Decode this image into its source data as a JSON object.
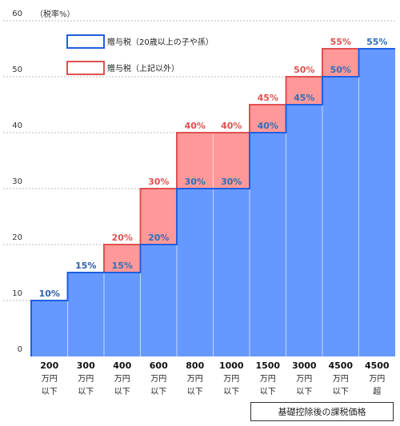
{
  "chart_data": {
    "type": "bar",
    "ylabel": "（税率%）",
    "xlabel": "基礎控除後の課税価格",
    "ylim": [
      0,
      60
    ],
    "yticks": [
      0,
      10,
      20,
      30,
      40,
      50,
      60
    ],
    "ytick_labels": [
      "0",
      "10",
      "20",
      "30",
      "40",
      "50",
      "60"
    ],
    "categories": [
      [
        "200",
        "万円",
        "以下"
      ],
      [
        "300",
        "万円",
        "以下"
      ],
      [
        "400",
        "万円",
        "以下"
      ],
      [
        "600",
        "万円",
        "以下"
      ],
      [
        "800",
        "万円",
        "以下"
      ],
      [
        "1000",
        "万円",
        "以下"
      ],
      [
        "1500",
        "万円",
        "以下"
      ],
      [
        "3000",
        "万円",
        "以下"
      ],
      [
        "4500",
        "万円",
        "以下"
      ],
      [
        "4500",
        "万円",
        "超"
      ]
    ],
    "series": [
      {
        "name": "贈与税（20歳以上の子や孫）",
        "values": [
          10,
          15,
          15,
          20,
          30,
          30,
          40,
          45,
          50,
          55
        ],
        "labels": [
          "10%",
          "15%",
          "15%",
          "20%",
          "30%",
          "30%",
          "40%",
          "45%",
          "50%",
          "55%"
        ],
        "color": "#6699ff",
        "line_color": "#1f5fe0",
        "label_color": "#2f6fb8"
      },
      {
        "name": "贈与税（上記以外）",
        "values": [
          10,
          15,
          20,
          30,
          40,
          40,
          45,
          50,
          55,
          55
        ],
        "labels": [
          "10%",
          "15%",
          "20%",
          "30%",
          "40%",
          "40%",
          "45%",
          "50%",
          "55%",
          ""
        ],
        "color": "#ff9999",
        "line_color": "#e05050",
        "label_color": "#e05050"
      }
    ],
    "legend_position": "top-left",
    "grid": true
  }
}
